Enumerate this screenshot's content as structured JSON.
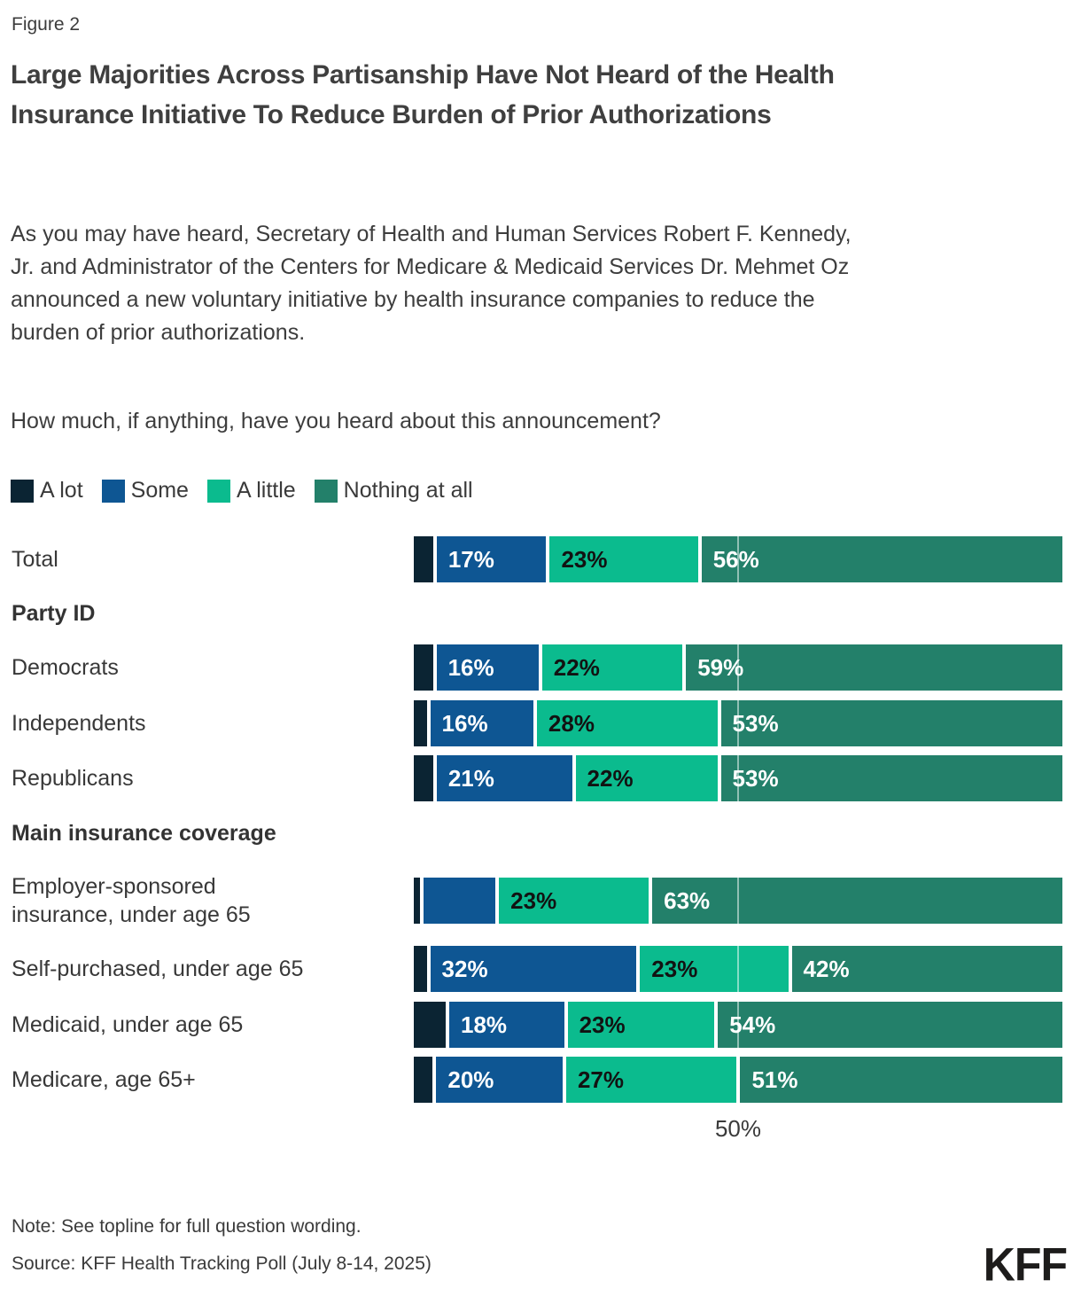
{
  "figure_label": "Figure 2",
  "title": "Large Majorities Across Partisanship Have Not Heard of the Health Insurance Initiative To Reduce Burden of Prior Authorizations",
  "description": "As you may have heard, Secretary of Health and Human Services Robert F. Kennedy, Jr. and Administrator of the Centers for Medicare & Medicaid Services Dr. Mehmet Oz announced a new voluntary initiative by health insurance companies to reduce the burden of prior authorizations.",
  "question": "How much, if anything, have you heard about this announcement?",
  "note": "Note: See topline for full question wording.",
  "source": "Source: KFF Health Tracking Poll (July 8-14, 2025)",
  "logo_text": "KFF",
  "chart_data": {
    "type": "bar",
    "stacked": true,
    "orientation": "horizontal",
    "x_axis": {
      "range_pct": [
        0,
        100
      ],
      "gridline_pct": 50,
      "gridline_label": "50%"
    },
    "unlabeled_segment_values_estimated_from_bar_widths": true,
    "series": [
      {
        "name": "A lot",
        "color": "#0b2433",
        "label_color": "#ffffff"
      },
      {
        "name": "Some",
        "color": "#0e5693",
        "label_color": "#ffffff"
      },
      {
        "name": "A little",
        "color": "#0bbb8e",
        "label_color": "#121212"
      },
      {
        "name": "Nothing at all",
        "color": "#23806a",
        "label_color": "#ffffff"
      }
    ],
    "groups": [
      {
        "header": "",
        "rows": [
          {
            "label": "Total",
            "values_pct": [
              3,
              17,
              23,
              56
            ],
            "segment_labels": [
              "",
              "17%",
              "23%",
              "56%"
            ]
          }
        ]
      },
      {
        "header": "Party ID",
        "rows": [
          {
            "label": "Democrats",
            "values_pct": [
              3,
              16,
              22,
              59
            ],
            "segment_labels": [
              "",
              "16%",
              "22%",
              "59%"
            ]
          },
          {
            "label": "Independents",
            "values_pct": [
              2,
              16,
              28,
              53
            ],
            "segment_labels": [
              "",
              "16%",
              "28%",
              "53%"
            ]
          },
          {
            "label": "Republicans",
            "values_pct": [
              3,
              21,
              22,
              53
            ],
            "segment_labels": [
              "",
              "21%",
              "22%",
              "53%"
            ]
          }
        ]
      },
      {
        "header": "Main insurance coverage",
        "rows": [
          {
            "label": "Employer-sponsored insurance, under age 65",
            "values_pct": [
              1,
              11,
              23,
              63
            ],
            "segment_labels": [
              "",
              "",
              "23%",
              "63%"
            ]
          },
          {
            "label": "Self-purchased, under age 65",
            "values_pct": [
              2,
              32,
              23,
              42
            ],
            "segment_labels": [
              "",
              "32%",
              "23%",
              "42%"
            ]
          },
          {
            "label": "Medicaid, under age 65",
            "values_pct": [
              5,
              18,
              23,
              54
            ],
            "segment_labels": [
              "",
              "18%",
              "23%",
              "54%"
            ]
          },
          {
            "label": "Medicare, age 65+",
            "values_pct": [
              3,
              20,
              27,
              51
            ],
            "segment_labels": [
              "",
              "20%",
              "27%",
              "51%"
            ]
          }
        ]
      }
    ]
  }
}
